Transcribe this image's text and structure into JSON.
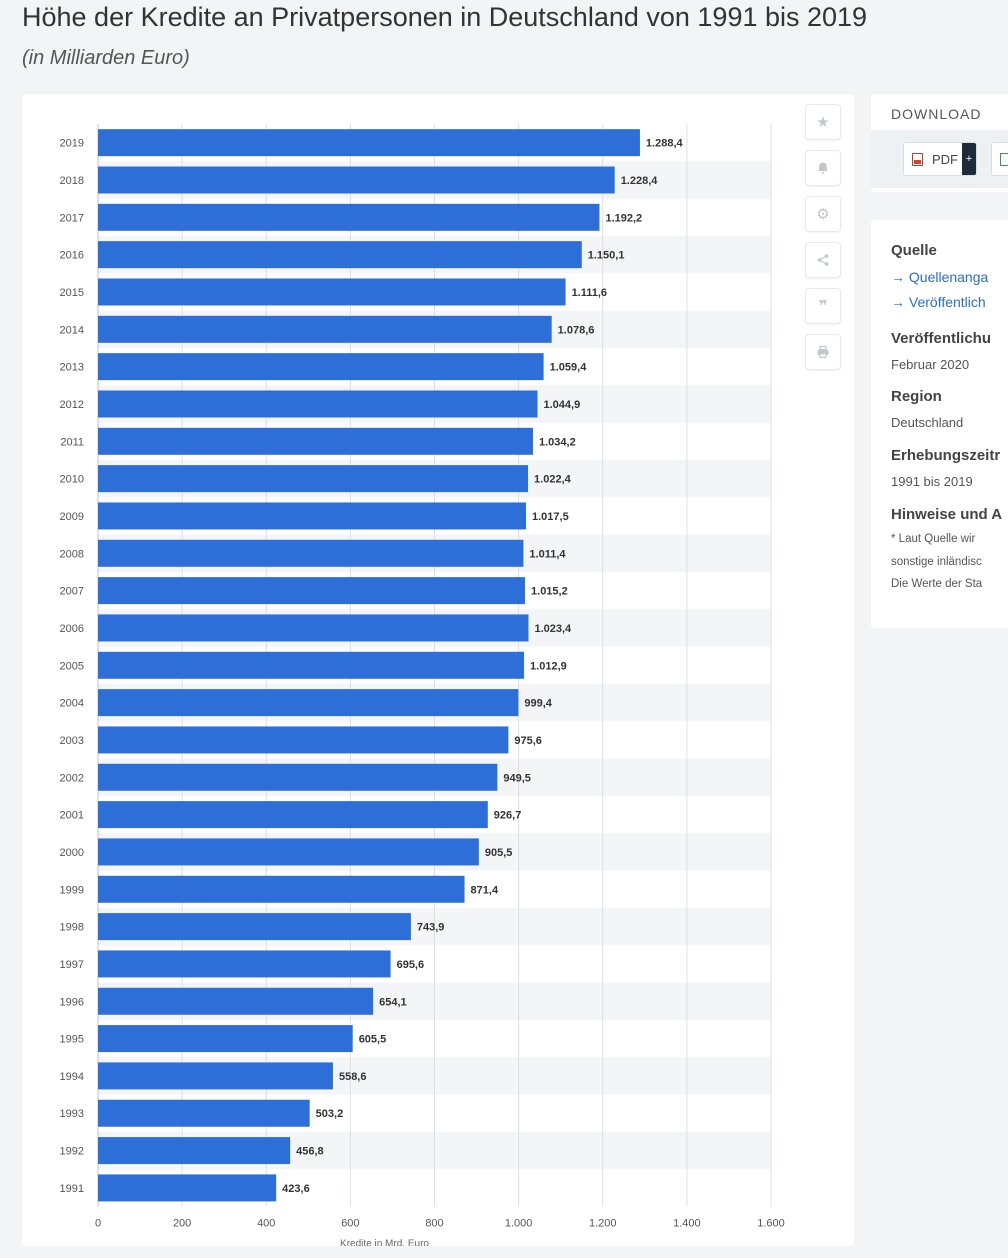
{
  "header": {
    "title": "Höhe der Kredite an Privatpersonen in Deutschland von 1991 bis 2019",
    "subtitle": "(in Milliarden Euro)"
  },
  "toolbar": {
    "icons": [
      "star-icon",
      "bell-icon",
      "gear-icon",
      "share-icon",
      "quote-icon",
      "print-icon"
    ]
  },
  "download": {
    "label": "DOWNLOAD",
    "pdf_label": "PDF",
    "pdf_plus": "+"
  },
  "info": {
    "source_title": "Quelle",
    "source_link_1": "→ Quellenanga",
    "source_link_2": "→ Veröffentlich",
    "published_title": "Veröffentlichu",
    "published_value": "Februar 2020",
    "region_title": "Region",
    "region_value": "Deutschland",
    "period_title": "Erhebungszeitr",
    "period_value": "1991 bis 2019",
    "notes_title": "Hinweise und A",
    "note_line_1": "* Laut Quelle wir",
    "note_line_2": "sonstige inländisc",
    "note_line_3": "Die Werte der Sta"
  },
  "colors": {
    "bar": "#2e6ed8",
    "stripe": "#f4f5f7",
    "grid": "#dcdfe3"
  },
  "chart_data": {
    "type": "bar",
    "orientation": "horizontal",
    "categories": [
      "2019",
      "2018",
      "2017",
      "2016",
      "2015",
      "2014",
      "2013",
      "2012",
      "2011",
      "2010",
      "2009",
      "2008",
      "2007",
      "2006",
      "2005",
      "2004",
      "2003",
      "2002",
      "2001",
      "2000",
      "1999",
      "1998",
      "1997",
      "1996",
      "1995",
      "1994",
      "1993",
      "1992",
      "1991"
    ],
    "values": [
      1288.4,
      1228.4,
      1192.2,
      1150.1,
      1111.6,
      1078.6,
      1059.4,
      1044.9,
      1034.2,
      1022.4,
      1017.5,
      1011.4,
      1015.2,
      1023.4,
      1012.9,
      999.4,
      975.6,
      949.5,
      926.7,
      905.5,
      871.4,
      743.9,
      695.6,
      654.1,
      605.5,
      558.6,
      503.2,
      456.8,
      423.6
    ],
    "value_labels": [
      "1.288,4",
      "1.228,4",
      "1.192,2",
      "1.150,1",
      "1.111,6",
      "1.078,6",
      "1.059,4",
      "1.044,9",
      "1.034,2",
      "1.022,4",
      "1.017,5",
      "1.011,4",
      "1.015,2",
      "1.023,4",
      "1.012,9",
      "999,4",
      "975,6",
      "949,5",
      "926,7",
      "905,5",
      "871,4",
      "743,9",
      "695,6",
      "654,1",
      "605,5",
      "558,6",
      "503,2",
      "456,8",
      "423,6"
    ],
    "xticks": [
      0,
      200,
      400,
      600,
      800,
      1000,
      1200,
      1400,
      1600
    ],
    "xtick_labels": [
      "0",
      "200",
      "400",
      "600",
      "800",
      "1.000",
      "1.200",
      "1.400",
      "1.600"
    ],
    "xlim": [
      0,
      1600
    ],
    "xlabel": "Kredite in Mrd. Euro",
    "ylabel": "",
    "grid": true
  }
}
